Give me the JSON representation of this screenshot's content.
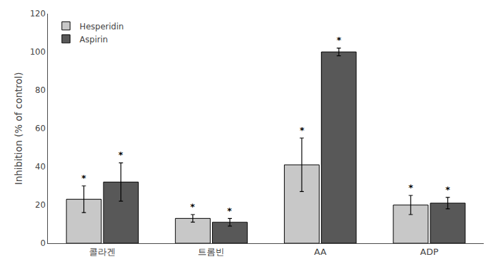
{
  "chart_data": {
    "type": "bar",
    "categories": [
      "콜라겐",
      "트롬빈",
      "AA",
      "ADP"
    ],
    "series": [
      {
        "name": "Hesperidin",
        "color": "#c8c8c8",
        "values": [
          23,
          13,
          41,
          20
        ],
        "errors": [
          7,
          2,
          14,
          5
        ]
      },
      {
        "name": "Aspirin",
        "color": "#585858",
        "values": [
          32,
          11,
          100,
          21
        ],
        "errors": [
          10,
          2,
          2,
          3
        ]
      }
    ],
    "ylabel": "Inhibition (% of control)",
    "ylim": [
      0,
      120
    ],
    "yticks": [
      0,
      20,
      40,
      60,
      80,
      100,
      120
    ],
    "annotation": "*",
    "legend": "upper left",
    "grid": false
  }
}
